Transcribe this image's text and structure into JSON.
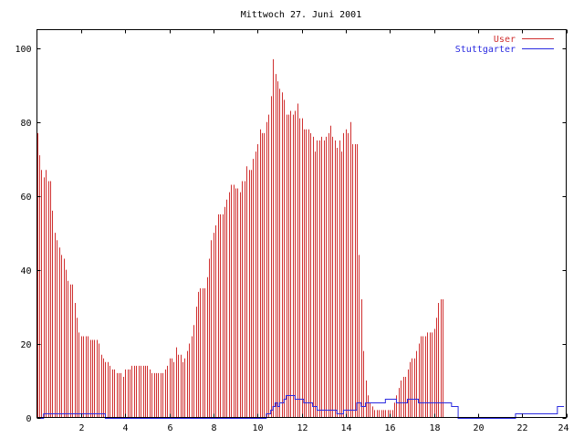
{
  "chart_data": {
    "type": "bar",
    "title": "Mittwoch 27. Juni 2001",
    "xlabel": "",
    "ylabel": "",
    "xlim": [
      0,
      24
    ],
    "ylim": [
      0,
      105
    ],
    "x_ticks": [
      {
        "value": 2,
        "label": "2"
      },
      {
        "value": 4,
        "label": "4"
      },
      {
        "value": 6,
        "label": "6"
      },
      {
        "value": 8,
        "label": "8"
      },
      {
        "value": 10,
        "label": "10"
      },
      {
        "value": 12,
        "label": "12"
      },
      {
        "value": 14,
        "label": "14"
      },
      {
        "value": 16,
        "label": "16"
      },
      {
        "value": 18,
        "label": "18"
      },
      {
        "value": 20,
        "label": "20"
      },
      {
        "value": 22,
        "label": "22"
      },
      {
        "value": 24,
        "label": "24"
      }
    ],
    "y_ticks": [
      {
        "value": 0,
        "label": "0"
      },
      {
        "value": 20,
        "label": "20"
      },
      {
        "value": 40,
        "label": "40"
      },
      {
        "value": 60,
        "label": "60"
      },
      {
        "value": 80,
        "label": "80"
      },
      {
        "value": 100,
        "label": "100"
      }
    ],
    "grid": false,
    "legend_position": "top-right",
    "series": [
      {
        "name": "User",
        "style": "impulses",
        "color": "#d03030",
        "x_step_hours": 0.1,
        "values": [
          77,
          71,
          67,
          65,
          67,
          64,
          64,
          56,
          50,
          48,
          46,
          44,
          43,
          40,
          37,
          36,
          36,
          31,
          27,
          23,
          22,
          22,
          22,
          22,
          21,
          21,
          21,
          21,
          20,
          17,
          16,
          15,
          15,
          14,
          13,
          13,
          12,
          12,
          12,
          11,
          13,
          13,
          13,
          14,
          14,
          14,
          14,
          14,
          14,
          14,
          14,
          13,
          12,
          12,
          12,
          12,
          12,
          12,
          13,
          14,
          16,
          16,
          15,
          19,
          17,
          17,
          15,
          16,
          18,
          20,
          22,
          25,
          30,
          34,
          35,
          35,
          35,
          38,
          43,
          48,
          50,
          52,
          55,
          55,
          55,
          57,
          59,
          61,
          63,
          63,
          62,
          62,
          61,
          64,
          64,
          68,
          67,
          67,
          70,
          72,
          74,
          78,
          77,
          77,
          80,
          82,
          87,
          97,
          93,
          91,
          89,
          88,
          86,
          82,
          82,
          83,
          82,
          83,
          85,
          81,
          81,
          78,
          78,
          78,
          77,
          76,
          72,
          75,
          75,
          76,
          75,
          76,
          77,
          79,
          76,
          75,
          73,
          75,
          72,
          77,
          78,
          77,
          80,
          74,
          74,
          74,
          44,
          32,
          18,
          10,
          6,
          4,
          3,
          2,
          2,
          2,
          2,
          2,
          2,
          2,
          2,
          2,
          4,
          6,
          8,
          10,
          11,
          11,
          13,
          15,
          16,
          16,
          18,
          20,
          22,
          22,
          22,
          23,
          23,
          23,
          24,
          27,
          31,
          32,
          32
        ]
      },
      {
        "name": "Stuttgarter",
        "style": "steps",
        "color": "#2a2ae0",
        "x_step_hours": 0.1,
        "values": [
          0,
          0,
          0,
          1,
          1,
          1,
          1,
          1,
          1,
          1,
          1,
          1,
          1,
          1,
          1,
          1,
          1,
          1,
          1,
          1,
          1,
          1,
          1,
          1,
          1,
          1,
          1,
          1,
          1,
          1,
          1,
          0,
          0,
          0,
          0,
          0,
          0,
          0,
          0,
          0,
          0,
          0,
          0,
          0,
          0,
          0,
          0,
          0,
          0,
          0,
          0,
          0,
          0,
          0,
          0,
          0,
          0,
          0,
          0,
          0,
          0,
          0,
          0,
          0,
          0,
          0,
          0,
          0,
          0,
          0,
          0,
          0,
          0,
          0,
          0,
          0,
          0,
          0,
          0,
          0,
          0,
          0,
          0,
          0,
          0,
          0,
          0,
          0,
          0,
          0,
          0,
          0,
          0,
          0,
          0,
          0,
          0,
          0,
          0,
          0,
          0,
          0,
          0,
          0,
          1,
          1,
          2,
          3,
          4,
          3,
          4,
          4,
          5,
          6,
          6,
          6,
          6,
          5,
          5,
          5,
          5,
          4,
          4,
          4,
          4,
          3,
          3,
          2,
          2,
          2,
          2,
          2,
          2,
          2,
          2,
          2,
          1,
          1,
          1,
          2,
          2,
          2,
          2,
          2,
          2,
          4,
          4,
          3,
          3,
          4,
          4,
          4,
          4,
          4,
          4,
          4,
          4,
          4,
          5,
          5,
          5,
          5,
          5,
          4,
          4,
          4,
          4,
          4,
          5,
          5,
          5,
          5,
          5,
          4,
          4,
          4,
          4,
          4,
          4,
          4,
          4,
          4,
          4,
          4,
          4,
          4,
          4,
          4,
          3,
          3,
          3,
          0,
          0,
          0,
          0,
          0,
          0,
          0,
          0,
          0,
          0,
          0,
          0,
          0,
          0,
          0,
          0,
          0,
          0,
          0,
          0,
          0,
          0,
          0,
          0,
          0,
          0,
          1,
          1,
          1,
          1,
          1,
          1,
          1,
          1,
          1,
          1,
          1,
          1,
          1,
          1,
          1,
          1,
          1,
          1,
          1,
          3,
          3,
          3
        ]
      }
    ]
  }
}
